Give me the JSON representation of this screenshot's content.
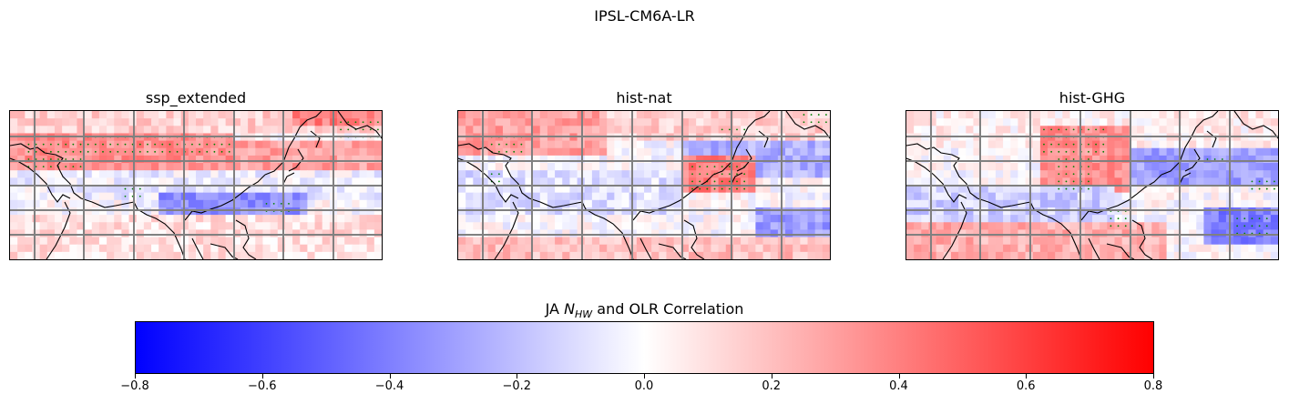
{
  "figure": {
    "title": "IPSL-CM6A-LR",
    "colorbar": {
      "label_prefix": "JA ",
      "label_symbol": "N",
      "label_sub": "HW",
      "label_suffix": " and OLR Correlation",
      "ticks": [
        "−0.8",
        "−0.6",
        "−0.4",
        "−0.2",
        "0.0",
        "0.2",
        "0.4",
        "0.6",
        "0.8"
      ],
      "range": [
        -0.8,
        0.8
      ],
      "colormap": "bwr",
      "colors": {
        "low": "#0000ff",
        "mid": "#ffffff",
        "high": "#ff0000"
      }
    },
    "stipple_color": "#008000",
    "gridline_color": "#808080"
  },
  "chart_data": [
    {
      "type": "heatmap",
      "title": "ssp_extended",
      "grid_rows": 20,
      "grid_cols": 50,
      "values": {
        "bands": [
          {
            "rows": [
              0,
              3
            ],
            "cols": [
              0,
              50
            ],
            "value": 0.15
          },
          {
            "rows": [
              3,
              8
            ],
            "cols": [
              0,
              30
            ],
            "value": 0.35
          },
          {
            "rows": [
              4,
              8
            ],
            "cols": [
              30,
              50
            ],
            "value": 0.3
          },
          {
            "rows": [
              8,
              12
            ],
            "cols": [
              0,
              50
            ],
            "value": -0.05
          },
          {
            "rows": [
              11,
              15
            ],
            "cols": [
              20,
              40
            ],
            "value": -0.35
          },
          {
            "rows": [
              14,
              20
            ],
            "cols": [
              0,
              50
            ],
            "value": 0.1
          },
          {
            "rows": [
              0,
              2
            ],
            "cols": [
              38,
              50
            ],
            "value": 0.4
          }
        ]
      },
      "significant_regions": [
        {
          "rows": [
            4,
            8
          ],
          "cols": [
            2,
            10
          ]
        },
        {
          "rows": [
            3,
            6
          ],
          "cols": [
            10,
            30
          ]
        },
        {
          "rows": [
            1,
            4
          ],
          "cols": [
            43,
            50
          ]
        },
        {
          "rows": [
            12,
            14
          ],
          "cols": [
            34,
            38
          ]
        },
        {
          "rows": [
            10,
            12
          ],
          "cols": [
            15,
            18
          ]
        }
      ]
    },
    {
      "type": "heatmap",
      "title": "hist-nat",
      "grid_rows": 20,
      "grid_cols": 50,
      "values": {
        "bands": [
          {
            "rows": [
              0,
              6
            ],
            "cols": [
              0,
              20
            ],
            "value": 0.3
          },
          {
            "rows": [
              0,
              4
            ],
            "cols": [
              20,
              50
            ],
            "value": 0.15
          },
          {
            "rows": [
              4,
              9
            ],
            "cols": [
              30,
              50
            ],
            "value": -0.25
          },
          {
            "rows": [
              6,
              11
            ],
            "cols": [
              30,
              40
            ],
            "value": 0.4
          },
          {
            "rows": [
              8,
              14
            ],
            "cols": [
              0,
              30
            ],
            "value": -0.1
          },
          {
            "rows": [
              13,
              17
            ],
            "cols": [
              40,
              50
            ],
            "value": -0.3
          },
          {
            "rows": [
              17,
              20
            ],
            "cols": [
              0,
              50
            ],
            "value": 0.2
          }
        ]
      },
      "significant_regions": [
        {
          "rows": [
            7,
            11
          ],
          "cols": [
            31,
            39
          ]
        },
        {
          "rows": [
            0,
            2
          ],
          "cols": [
            46,
            50
          ]
        },
        {
          "rows": [
            3,
            6
          ],
          "cols": [
            4,
            9
          ]
        },
        {
          "rows": [
            8,
            10
          ],
          "cols": [
            4,
            6
          ]
        },
        {
          "rows": [
            2,
            4
          ],
          "cols": [
            35,
            39
          ]
        }
      ]
    },
    {
      "type": "heatmap",
      "title": "hist-GHG",
      "grid_rows": 20,
      "grid_cols": 50,
      "values": {
        "bands": [
          {
            "rows": [
              0,
              5
            ],
            "cols": [
              0,
              50
            ],
            "value": 0.05
          },
          {
            "rows": [
              2,
              11
            ],
            "cols": [
              18,
              30
            ],
            "value": 0.35
          },
          {
            "rows": [
              5,
              10
            ],
            "cols": [
              30,
              50
            ],
            "value": -0.3
          },
          {
            "rows": [
              10,
              15
            ],
            "cols": [
              0,
              28
            ],
            "value": -0.15
          },
          {
            "rows": [
              13,
              18
            ],
            "cols": [
              40,
              50
            ],
            "value": -0.4
          },
          {
            "rows": [
              15,
              20
            ],
            "cols": [
              0,
              35
            ],
            "value": 0.25
          }
        ]
      },
      "significant_regions": [
        {
          "rows": [
            2,
            6
          ],
          "cols": [
            18,
            27
          ]
        },
        {
          "rows": [
            6,
            11
          ],
          "cols": [
            20,
            25
          ]
        },
        {
          "rows": [
            13,
            16
          ],
          "cols": [
            27,
            30
          ]
        },
        {
          "rows": [
            14,
            17
          ],
          "cols": [
            43,
            49
          ]
        },
        {
          "rows": [
            9,
            11
          ],
          "cols": [
            46,
            50
          ]
        },
        {
          "rows": [
            6,
            7
          ],
          "cols": [
            40,
            43
          ]
        }
      ]
    }
  ]
}
